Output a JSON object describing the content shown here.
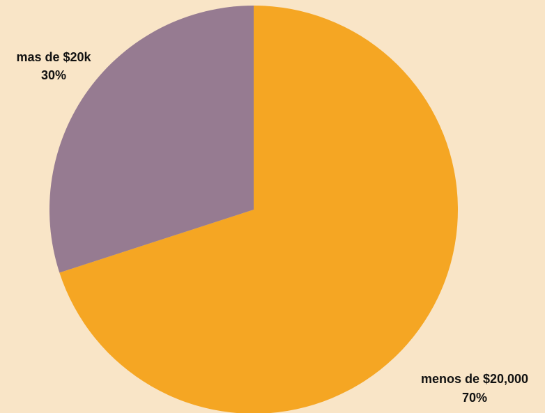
{
  "chart_data": {
    "type": "pie",
    "categories": [
      "menos de $20,000",
      "mas de $20k"
    ],
    "values": [
      70,
      30
    ],
    "value_labels": [
      "70%",
      "30%"
    ],
    "colors": [
      "#f5a623",
      "#967b91"
    ],
    "background": "#f9e5c7"
  }
}
